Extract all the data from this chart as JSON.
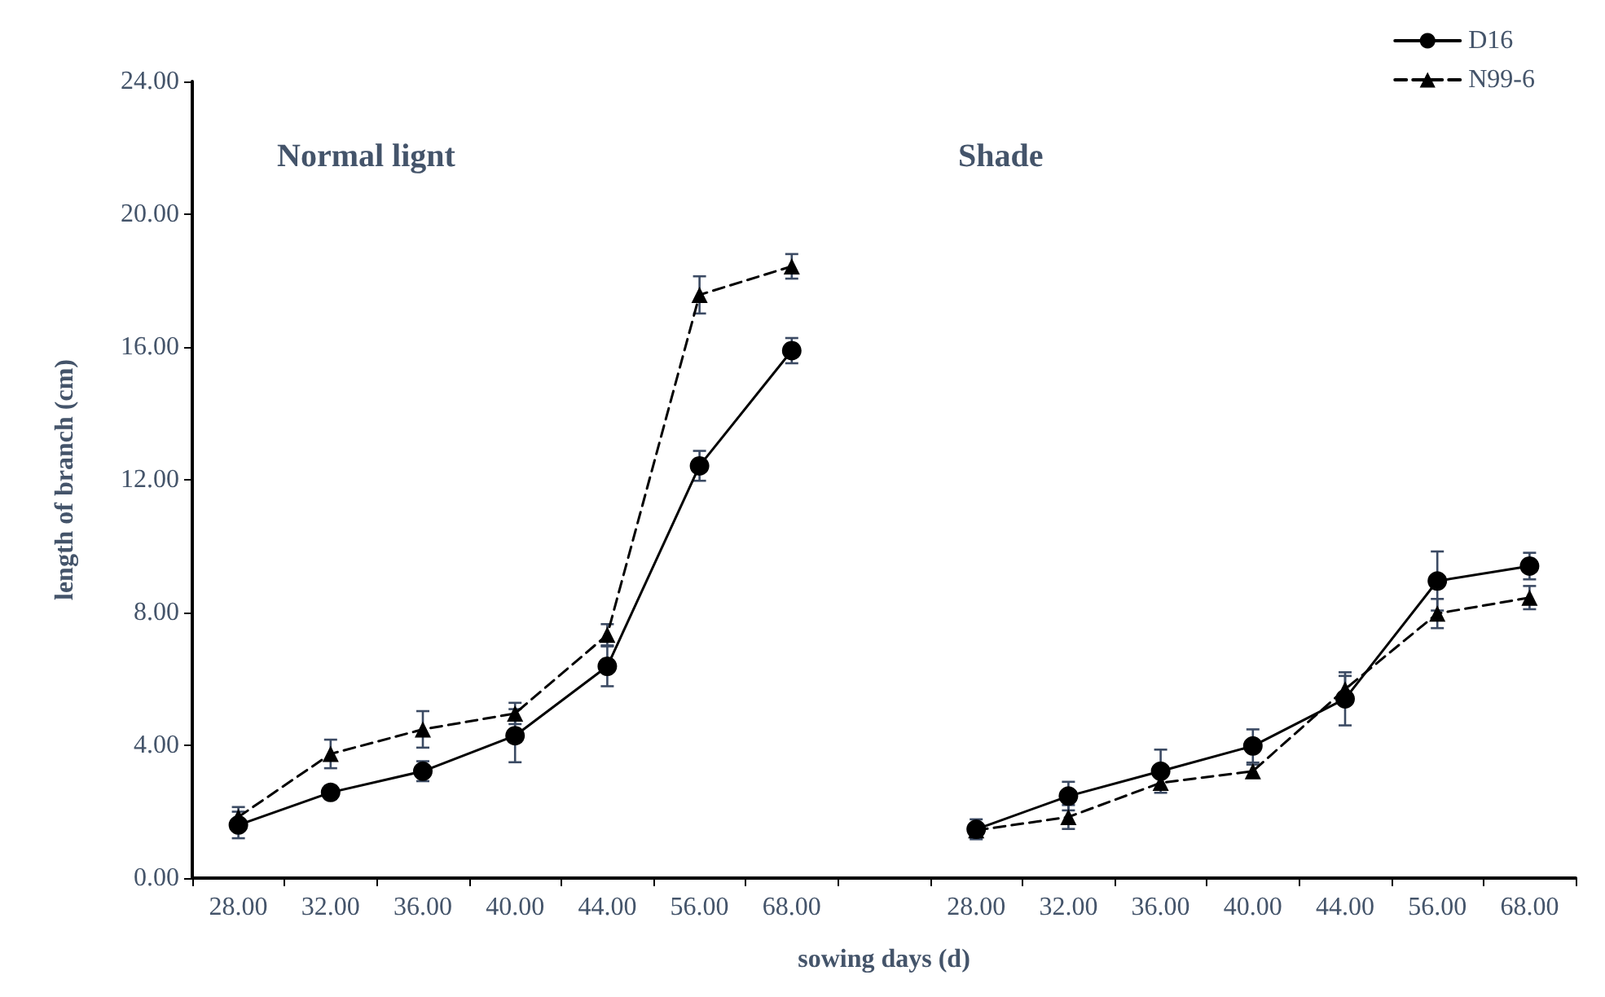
{
  "chart_data": {
    "type": "line",
    "xlabel": "sowing days (d)",
    "ylabel": "length of branch (cm)",
    "annotations": [
      "Normal lignt",
      "Shade"
    ],
    "categories": [
      "28.00",
      "32.00",
      "36.00",
      "40.00",
      "44.00",
      "56.00",
      "68.00",
      null,
      "28.00",
      "32.00",
      "36.00",
      "40.00",
      "44.00",
      "56.00",
      "68.00"
    ],
    "series": [
      {
        "name": "D16",
        "color": "#000000",
        "marker": "circle",
        "line_style": "solid",
        "values": [
          1.6,
          2.58,
          3.22,
          4.29,
          6.38,
          12.42,
          15.89,
          null,
          1.47,
          2.47,
          3.22,
          3.98,
          5.4,
          8.95,
          9.4
        ],
        "errors": [
          0.4,
          0.2,
          0.3,
          0.8,
          0.6,
          0.45,
          0.38,
          null,
          0.3,
          0.43,
          0.65,
          0.5,
          0.8,
          0.89,
          0.4
        ]
      },
      {
        "name": "N99-6",
        "color": "#000000",
        "marker": "triangle",
        "line_style": "dashed",
        "values": [
          1.84,
          3.74,
          4.48,
          4.96,
          7.33,
          17.57,
          18.43,
          null,
          1.44,
          1.84,
          2.87,
          3.22,
          5.69,
          7.97,
          8.45
        ],
        "errors": [
          0.3,
          0.43,
          0.55,
          0.32,
          0.32,
          0.56,
          0.37,
          null,
          0.2,
          0.36,
          0.2,
          0.2,
          0.4,
          0.44,
          0.35
        ]
      }
    ],
    "ylim": [
      0,
      24
    ],
    "yticks": [
      {
        "value": 0,
        "label": "0.00"
      },
      {
        "value": 4,
        "label": "4.00"
      },
      {
        "value": 8,
        "label": "8.00"
      },
      {
        "value": 12,
        "label": "12.00"
      },
      {
        "value": 16,
        "label": "16.00"
      },
      {
        "value": 20,
        "label": "20.00"
      },
      {
        "value": 24,
        "label": "24.00"
      }
    ],
    "grid": false,
    "legend": "top right"
  }
}
